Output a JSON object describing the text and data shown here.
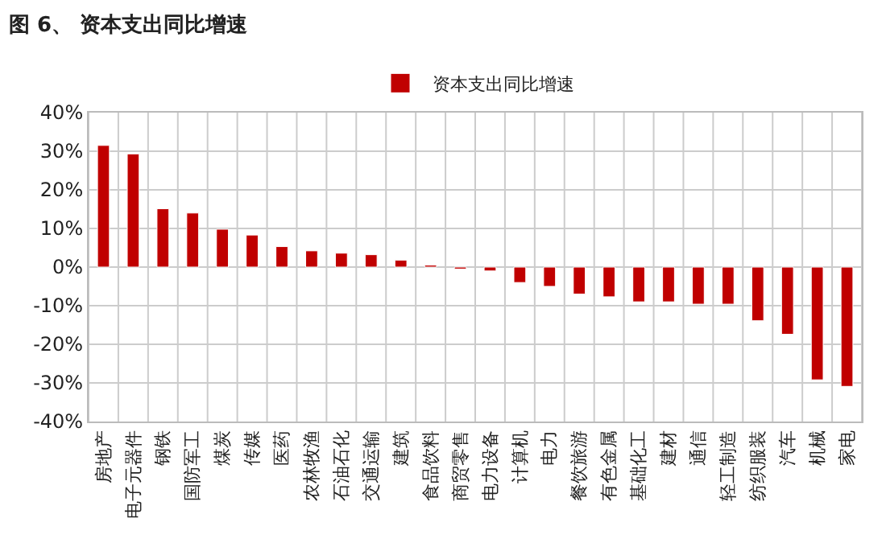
{
  "chart_data": {
    "type": "bar",
    "title": "图 6、 资本支出同比增速",
    "categories": [
      "房地产",
      "电子元器件",
      "钢铁",
      "国防军工",
      "煤炭",
      "传媒",
      "医药",
      "农林牧渔",
      "石油石化",
      "交通运输",
      "建筑",
      "食品饮料",
      "商贸零售",
      "电力设备",
      "计算机",
      "电力",
      "餐饮旅游",
      "有色金属",
      "基础化工",
      "建材",
      "通信",
      "轻工制造",
      "纺织服装",
      "汽车",
      "机械",
      "家电"
    ],
    "series": [
      {
        "name": "资本支出同比增速",
        "color": "#c00000",
        "values": [
          31.5,
          29.3,
          15.1,
          14,
          9.8,
          8.3,
          5.3,
          4.2,
          3.6,
          3.2,
          1.8,
          0.5,
          -0.5,
          -1,
          -4,
          -5,
          -7,
          -7.7,
          -9,
          -9,
          -9.6,
          -9.6,
          -13.9,
          -17.4,
          -29.2,
          -30.9
        ]
      }
    ],
    "ylim": [
      -40,
      40
    ],
    "yticks": [
      {
        "value": 40,
        "label": "40%"
      },
      {
        "value": 30,
        "label": "30%"
      },
      {
        "value": 20,
        "label": "20%"
      },
      {
        "value": 10,
        "label": "10%"
      },
      {
        "value": 0,
        "label": "0%"
      },
      {
        "value": -10,
        "label": "-10%"
      },
      {
        "value": -20,
        "label": "-20%"
      },
      {
        "value": -30,
        "label": "-30%"
      },
      {
        "value": -40,
        "label": "-40%"
      }
    ],
    "grid": true,
    "legend": "top"
  }
}
